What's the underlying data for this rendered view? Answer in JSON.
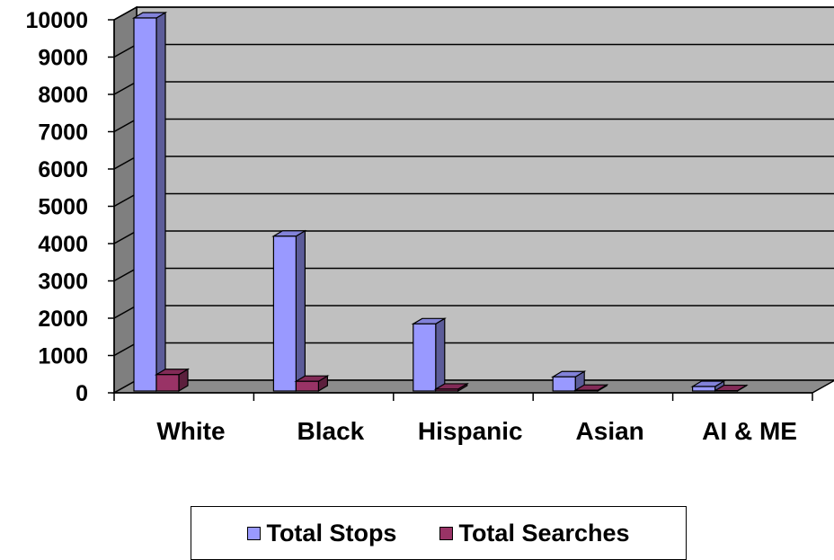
{
  "chart_data": {
    "type": "bar",
    "style": "3d-clustered-column",
    "categories": [
      "White",
      "Black",
      "Hispanic",
      "Asian",
      "AI & ME"
    ],
    "series": [
      {
        "name": "Total Stops",
        "color": "#9999ff",
        "values": [
          10000,
          4150,
          1800,
          380,
          120
        ]
      },
      {
        "name": "Total Searches",
        "color": "#993366",
        "values": [
          440,
          260,
          50,
          20,
          10
        ]
      }
    ],
    "yticks": [
      "0",
      "1000",
      "2000",
      "3000",
      "4000",
      "5000",
      "6000",
      "7000",
      "8000",
      "9000",
      "10000"
    ],
    "ylim": [
      0,
      10000
    ],
    "grid": true,
    "wall_color": "#c0c0c0",
    "legend_position": "bottom"
  }
}
